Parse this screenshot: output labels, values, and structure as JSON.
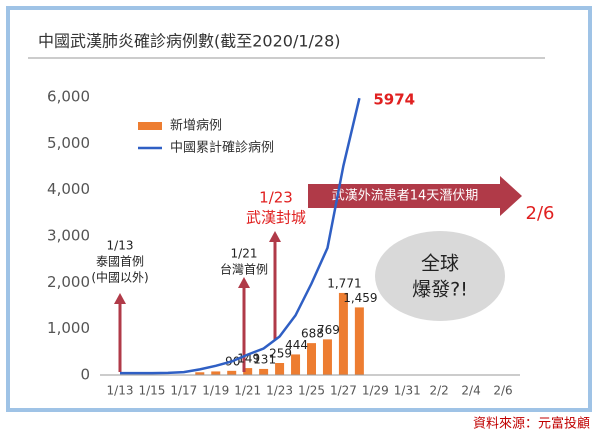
{
  "chart_data": {
    "type": "bar-line",
    "title": "中國武漢肺炎確診病例數(截至2020/1/28)",
    "categories": [
      "1/13",
      null,
      "1/15",
      null,
      "1/17",
      null,
      "1/19",
      null,
      "1/21",
      null,
      "1/23",
      null,
      "1/25",
      null,
      "1/27",
      null,
      "1/29",
      null,
      "1/31",
      null,
      "2/2",
      null,
      "2/4",
      null,
      "2/6"
    ],
    "series": [
      {
        "name": "新增病例",
        "color": "#ed7d31",
        "type": "bar",
        "values": [
          null,
          null,
          null,
          null,
          null,
          59,
          77,
          90,
          149,
          131,
          259,
          444,
          688,
          769,
          1771,
          1459,
          null,
          null,
          null,
          null,
          null,
          null,
          null,
          null,
          null
        ],
        "value_labels": [
          null,
          null,
          null,
          null,
          null,
          null,
          null,
          "90",
          "149",
          "131",
          "259",
          "444",
          "688",
          "769",
          "1,771",
          "1,459",
          null,
          null,
          null,
          null,
          null,
          null,
          null,
          null,
          null
        ]
      },
      {
        "name": "中國累計確診病例",
        "color": "#2f5fc4",
        "type": "line",
        "values": [
          41,
          41,
          41,
          45,
          62,
          121,
          198,
          291,
          440,
          571,
          830,
          1287,
          1975,
          2744,
          4515,
          5974,
          null,
          null,
          null,
          null,
          null,
          null,
          null,
          null,
          null
        ]
      }
    ],
    "ylim": [
      0,
      6000
    ],
    "yticks": [
      0,
      {
        "value": 1000,
        "label": "1,000"
      },
      {
        "value": 2000,
        "label": "2,000"
      },
      {
        "value": 3000,
        "label": "3,000"
      },
      {
        "value": 4000,
        "label": "4,000"
      },
      {
        "value": 5000,
        "label": "5,000"
      },
      {
        "value": 6000,
        "label": "6,000"
      }
    ],
    "annotations": [
      "1/13",
      "泰國首例",
      "(中國以外)",
      "1/21",
      "台灣首例",
      "1/23",
      "武漢封城",
      "武漢外流患者14天潛伏期",
      "2/6",
      "全球",
      "爆發?!"
    ],
    "source": "資料來源：元富投顧"
  }
}
